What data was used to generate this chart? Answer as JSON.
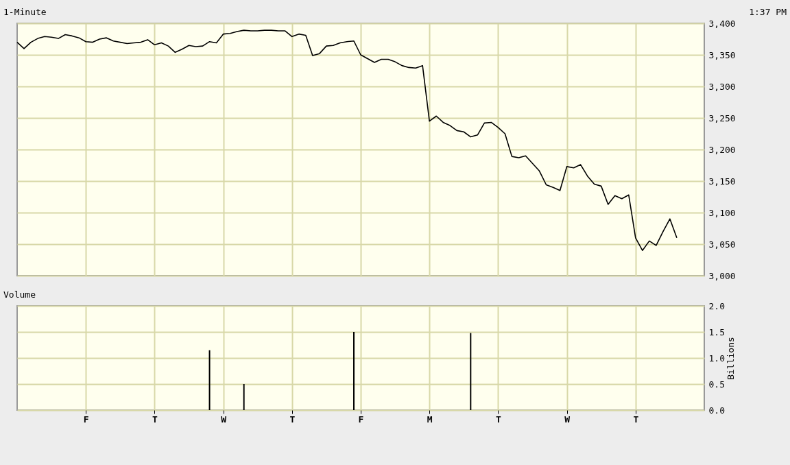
{
  "chart_data": [
    {
      "type": "line",
      "title": "1-Minute",
      "annotations": [
        "1:37 PM"
      ],
      "color": "#000000",
      "line_style": "solid",
      "marker": "none",
      "grid": true,
      "tick_labels": "y",
      "categories": [
        null,
        null,
        null,
        null,
        null,
        null,
        null,
        null,
        null,
        null,
        null,
        null,
        null,
        null,
        null,
        null,
        null,
        null,
        null,
        null,
        null,
        null,
        null,
        null,
        null,
        null,
        null,
        null,
        null,
        null,
        null,
        null,
        null,
        null,
        null,
        null,
        null,
        null,
        null,
        null,
        null,
        null,
        null,
        null,
        null,
        null,
        null,
        null,
        null,
        null,
        null,
        null,
        null,
        null,
        null,
        null,
        null,
        null,
        null,
        null,
        null,
        null,
        null,
        null,
        null,
        null,
        null,
        null,
        null,
        null,
        null,
        null,
        null,
        null,
        null,
        null,
        null,
        null,
        null,
        null,
        null,
        null,
        null,
        null,
        null,
        null,
        null,
        null,
        null,
        null,
        null,
        null,
        null,
        null,
        null,
        null,
        null,
        null,
        null,
        null,
        null
      ],
      "values": [
        3370,
        3360,
        3370,
        3376,
        3379,
        3378,
        3376,
        3382,
        3380,
        3377,
        3371,
        3370,
        3375,
        3377,
        3372,
        3370,
        3368,
        3369,
        3370,
        3374,
        3366,
        3369,
        3364,
        3354,
        3359,
        3365,
        3363,
        3364,
        3371,
        3369,
        3383,
        3384,
        3387,
        3389,
        3388,
        3388,
        3389,
        3389,
        3388,
        3388,
        3379,
        3383,
        3381,
        3349,
        3352,
        3364,
        3365,
        3369,
        3371,
        3372,
        3350,
        3344,
        3338,
        3343,
        3343,
        3339,
        3333,
        3330,
        3329,
        3333,
        3245,
        3253,
        3243,
        3238,
        3230,
        3228,
        3220,
        3223,
        3242,
        3243,
        3235,
        3225,
        3189,
        3187,
        3190,
        3178,
        3166,
        3144,
        3140,
        3135,
        3173,
        3171,
        3176,
        3158,
        3145,
        3142,
        3113,
        3127,
        3122,
        3128,
        3060,
        3040,
        3055,
        3048,
        3070,
        3090,
        3060,
        null,
        null,
        null,
        null
      ],
      "ylim": [
        3000,
        3400
      ],
      "yticks": [
        {
          "value": 3000,
          "label": "3,000"
        },
        {
          "value": 3050,
          "label": "3,050"
        },
        {
          "value": 3100,
          "label": "3,100"
        },
        {
          "value": 3150,
          "label": "3,150"
        },
        {
          "value": 3200,
          "label": "3,200"
        },
        {
          "value": 3250,
          "label": "3,250"
        },
        {
          "value": 3300,
          "label": "3,300"
        },
        {
          "value": 3350,
          "label": "3,350"
        },
        {
          "value": 3400,
          "label": "3,400"
        }
      ]
    },
    {
      "type": "bar",
      "title": "Volume",
      "ylabel": "Billions",
      "color": "#000000",
      "grid": true,
      "categories": [
        null,
        null,
        null,
        null,
        null,
        null,
        null,
        null,
        null,
        null,
        "F",
        null,
        null,
        null,
        null,
        null,
        null,
        null,
        null,
        null,
        "T",
        null,
        null,
        null,
        null,
        null,
        null,
        null,
        null,
        null,
        "W",
        null,
        null,
        null,
        null,
        null,
        null,
        null,
        null,
        null,
        "T",
        null,
        null,
        null,
        null,
        null,
        null,
        null,
        null,
        null,
        "F",
        null,
        null,
        null,
        null,
        null,
        null,
        null,
        null,
        null,
        "M",
        null,
        null,
        null,
        null,
        null,
        null,
        null,
        null,
        null,
        "T",
        null,
        null,
        null,
        null,
        null,
        null,
        null,
        null,
        null,
        "W",
        null,
        null,
        null,
        null,
        null,
        null,
        null,
        null,
        null,
        "T",
        null,
        null,
        null,
        null,
        null,
        null,
        null,
        null,
        null,
        null
      ],
      "values": [
        null,
        null,
        null,
        null,
        null,
        null,
        null,
        null,
        null,
        null,
        null,
        null,
        null,
        null,
        null,
        null,
        null,
        null,
        null,
        null,
        null,
        null,
        null,
        null,
        null,
        null,
        null,
        null,
        1.15,
        null,
        null,
        null,
        null,
        0.5,
        null,
        null,
        null,
        null,
        null,
        null,
        null,
        null,
        null,
        null,
        null,
        null,
        null,
        null,
        null,
        1.5,
        null,
        null,
        null,
        null,
        null,
        null,
        null,
        null,
        null,
        null,
        null,
        null,
        null,
        null,
        null,
        null,
        1.48,
        null,
        null,
        null,
        null,
        null,
        null,
        null,
        null,
        null,
        null,
        null,
        null,
        null,
        null,
        null,
        null,
        null,
        null,
        null,
        null,
        null,
        null,
        null,
        null,
        null,
        null,
        null,
        null,
        null,
        null,
        null,
        null,
        null,
        null
      ],
      "ylim": [
        0,
        2
      ],
      "yticks": [
        {
          "value": 0,
          "label": "0.0"
        },
        {
          "value": 0.5,
          "label": "0.5"
        },
        {
          "value": 1,
          "label": "1.0"
        },
        {
          "value": 1.5,
          "label": "1.5"
        },
        {
          "value": 2,
          "label": "2.0"
        }
      ]
    }
  ]
}
